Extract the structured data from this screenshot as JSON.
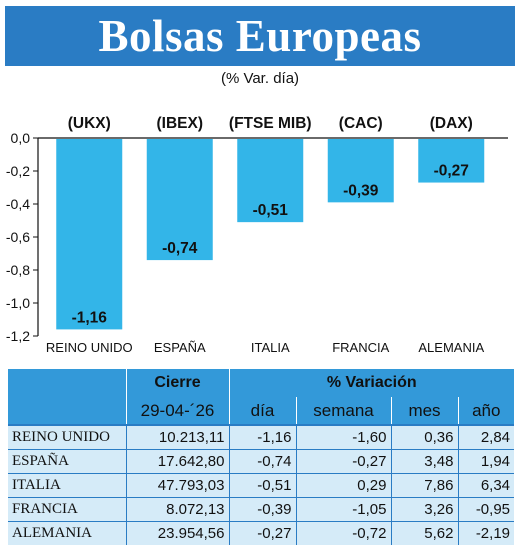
{
  "title": "Bolsas Europeas",
  "subtitle": "(% Var. día)",
  "chart_data": {
    "type": "bar",
    "codes": [
      "(UKX)",
      "(IBEX)",
      "(FTSE MIB)",
      "(CAC)",
      "(DAX)"
    ],
    "categories": [
      "REINO UNIDO",
      "ESPAÑA",
      "ITALIA",
      "FRANCIA",
      "ALEMANIA"
    ],
    "values": [
      -1.16,
      -0.74,
      -0.51,
      -0.39,
      -0.27
    ],
    "value_labels": [
      "-1,16",
      "-0,74",
      "-0,51",
      "-0,39",
      "-0,27"
    ],
    "yticks": [
      0,
      -0.2,
      -0.4,
      -0.6,
      -0.8,
      -1.0,
      -1.2
    ],
    "ytick_labels": [
      "0,0",
      "-0,2",
      "-0,4",
      "-0,6",
      "-0,8",
      "-1,0",
      "-1,2"
    ],
    "ylim": [
      -1.2,
      0
    ],
    "bar_color": "#33b5e8",
    "grid": false
  },
  "table": {
    "header_cierre": "Cierre",
    "header_variacion": "% Variación",
    "date": "29-04-´26",
    "col_dia": "día",
    "col_semana": "semana",
    "col_mes": "mes",
    "col_ano": "año",
    "rows": [
      {
        "name": "REINO UNIDO",
        "cierre": "10.213,11",
        "dia": "-1,16",
        "semana": "-1,60",
        "mes": "0,36",
        "ano": "2,84"
      },
      {
        "name": "ESPAÑA",
        "cierre": "17.642,80",
        "dia": "-0,74",
        "semana": "-0,27",
        "mes": "3,48",
        "ano": "1,94"
      },
      {
        "name": "ITALIA",
        "cierre": "47.793,03",
        "dia": "-0,51",
        "semana": "0,29",
        "mes": "7,86",
        "ano": "6,34"
      },
      {
        "name": "FRANCIA",
        "cierre": "8.072,13",
        "dia": "-0,39",
        "semana": "-1,05",
        "mes": "3,26",
        "ano": "-0,95"
      },
      {
        "name": "ALEMANIA",
        "cierre": "23.954,56",
        "dia": "-0,27",
        "semana": "-0,72",
        "mes": "5,62",
        "ano": "-2,19"
      }
    ]
  }
}
